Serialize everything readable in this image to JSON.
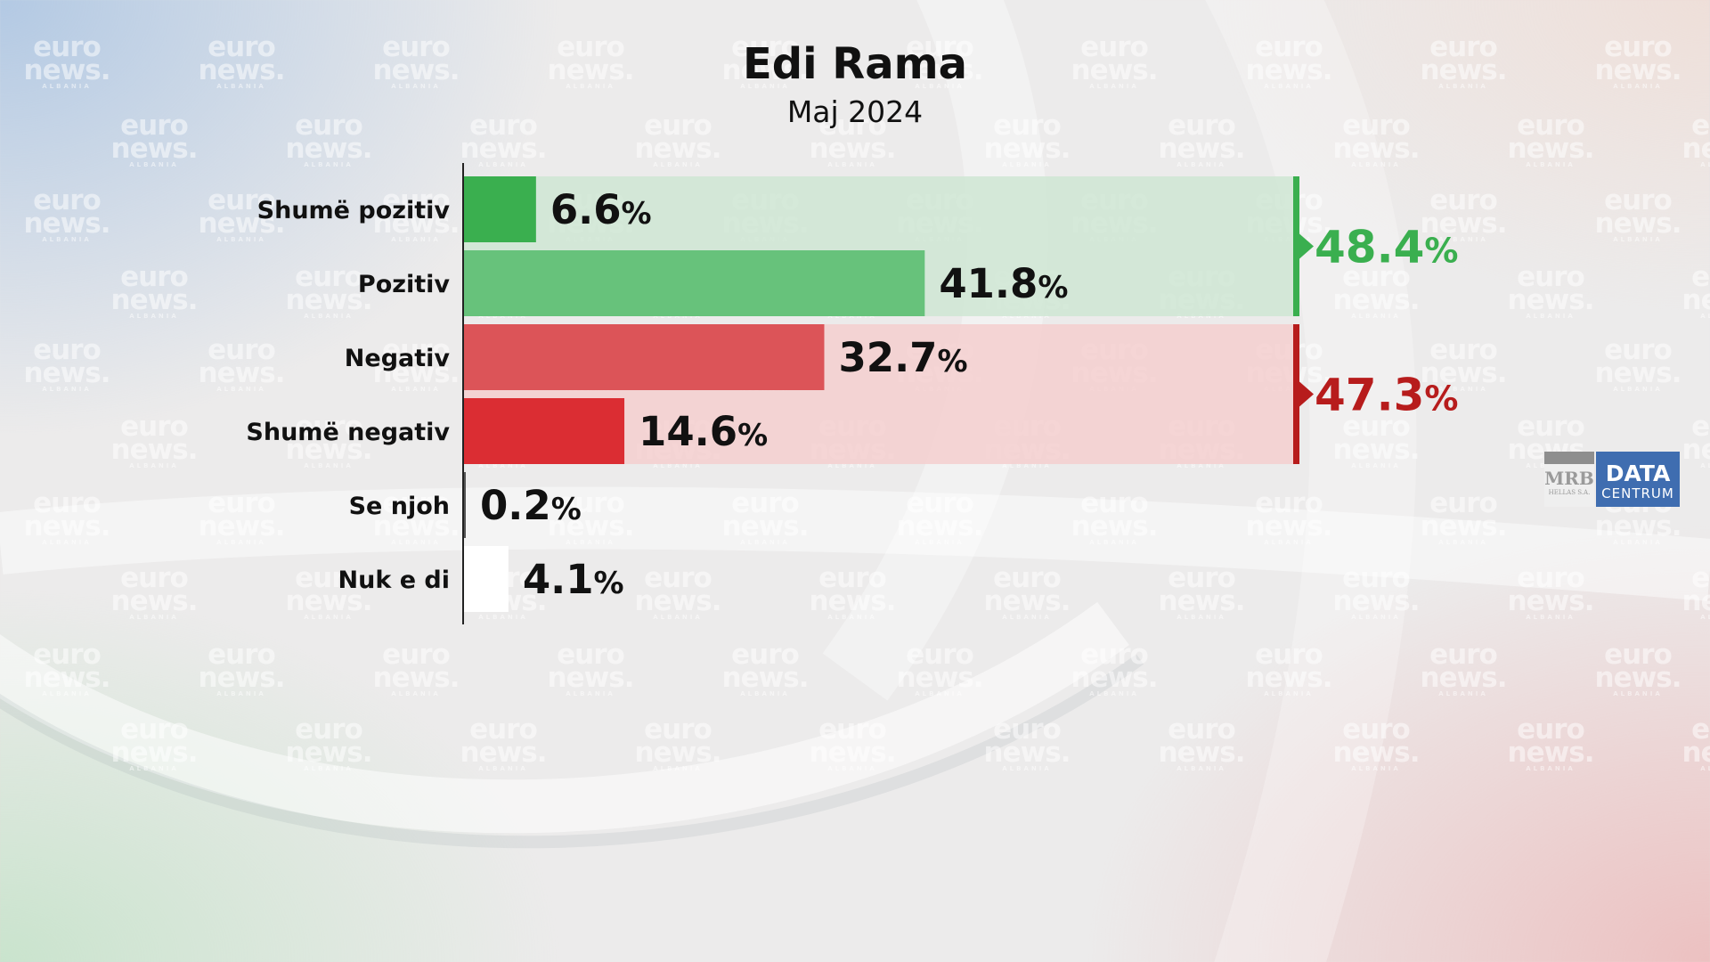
{
  "title": "Edi Rama",
  "subtitle": "Maj 2024",
  "watermark": {
    "line1": "euro",
    "line2": "news.",
    "line3": "ALBANIA"
  },
  "logo": {
    "mrb": "MRB",
    "mrb_sub": "HELLAS S.A.",
    "data": "DATA",
    "data_sub": "CENTRUM"
  },
  "colors": {
    "positive_group": "#3aaf4f",
    "negative_group": "#b71c1c",
    "positive_bg": "#cfe6d4",
    "negative_bg": "#f4cfcf"
  },
  "chart_data": {
    "type": "bar",
    "orientation": "horizontal",
    "categories": [
      "Shumë pozitiv",
      "Pozitiv",
      "Negativ",
      "Shumë negativ",
      "Se njoh",
      "Nuk e di"
    ],
    "values": [
      6.6,
      41.8,
      32.7,
      14.6,
      0.2,
      4.1
    ],
    "value_labels": [
      "6.6",
      "41.8",
      "32.7",
      "14.6",
      "0.2",
      "4.1"
    ],
    "unit": "%",
    "bar_colors": [
      "#3aaf4f",
      "#67c27b",
      "#dc5458",
      "#db2d33",
      "#555555",
      "#ffffff"
    ],
    "groups": [
      {
        "categories": [
          "Shumë pozitiv",
          "Pozitiv"
        ],
        "value": 48.4,
        "label": "48.4",
        "color": "#3aaf4f"
      },
      {
        "categories": [
          "Negativ",
          "Shumë negativ"
        ],
        "value": 47.3,
        "label": "47.3",
        "color": "#b71c1c"
      }
    ],
    "title": "Edi Rama",
    "subtitle": "Maj 2024",
    "xlim": [
      0,
      60
    ],
    "grid": false,
    "legend": "none"
  }
}
